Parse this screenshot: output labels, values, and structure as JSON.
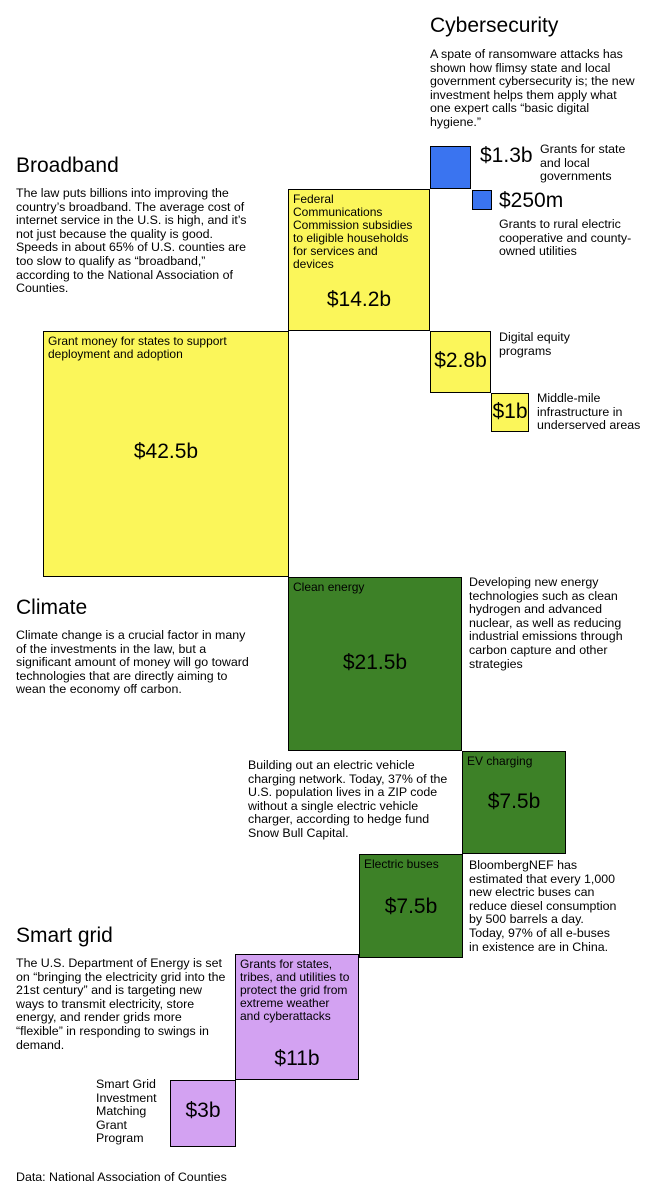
{
  "sections": {
    "cybersecurity": {
      "heading": "Cybersecurity",
      "description": "A spate of ransomware attacks has shown how flimsy state and local government cybersecurity is; the new investment helps them apply what one expert calls “basic digital hygiene.”"
    },
    "broadband": {
      "heading": "Broadband",
      "description": "The law puts billions into improving the country’s broadband. The average cost of internet service in the U.S. is high, and it’s not just because the quality is good. Speeds in about 65% of U.S. counties are too slow to qualify as “broadband,” according to the National Association of Counties."
    },
    "climate": {
      "heading": "Climate",
      "description": "Climate change is a crucial factor in many of the investments in the law, but a significant amount of money will go toward technologies that are directly aiming to wean the economy off carbon."
    },
    "smart_grid": {
      "heading": "Smart grid",
      "description": "The U.S. Department of Energy is set on “bringing the electricity grid into the 21st century” and is targeting new ways to transmit electricity, store energy, and render grids more “flexible” in responding to swings in demand."
    }
  },
  "colors": {
    "broadband": "#fbf65a",
    "cybersecurity": "#3a74f0",
    "climate": "#3d8127",
    "smart_grid": "#d3a2f2",
    "stroke": "#000000"
  },
  "chart_data": {
    "type": "proportional squares",
    "unit": "$ billions",
    "items": [
      {
        "id": "cyber-state",
        "category": "Cybersecurity",
        "label": "Grants for state and local governments",
        "value": 1.3,
        "value_label": "$1.3b"
      },
      {
        "id": "cyber-rural",
        "category": "Cybersecurity",
        "label": "Grants to rural electric cooperative and county-owned utilities",
        "value": 0.25,
        "value_label": "$250m"
      },
      {
        "id": "bb-fcc",
        "category": "Broadband",
        "label": "Federal Communications Commission subsidies to eligible households for services and devices",
        "value": 14.2,
        "value_label": "$14.2b"
      },
      {
        "id": "bb-grant",
        "category": "Broadband",
        "label": "Grant money for states to support deployment and adoption",
        "value": 42.5,
        "value_label": "$42.5b"
      },
      {
        "id": "bb-equity",
        "category": "Broadband",
        "label": "Digital equity programs",
        "value": 2.8,
        "value_label": "$2.8b"
      },
      {
        "id": "bb-middle",
        "category": "Broadband",
        "label": "Middle-mile infrastructure in underserved areas",
        "value": 1,
        "value_label": "$1b"
      },
      {
        "id": "cl-clean",
        "category": "Climate",
        "label": "Clean energy",
        "value": 21.5,
        "value_label": "$21.5b"
      },
      {
        "id": "cl-ev",
        "category": "Climate",
        "label": "EV charging",
        "value": 7.5,
        "value_label": "$7.5b"
      },
      {
        "id": "cl-bus",
        "category": "Climate",
        "label": "Electric buses",
        "value": 7.5,
        "value_label": "$7.5b"
      },
      {
        "id": "sg-grants",
        "category": "Smart grid",
        "label": "Grants for states, tribes, and utilities to protect the grid from extreme weather and cyberattacks",
        "value": 11,
        "value_label": "$11b"
      },
      {
        "id": "sg-match",
        "category": "Smart grid",
        "label": "Smart Grid Investment Matching Grant Program",
        "value": 3,
        "value_label": "$3b"
      }
    ]
  },
  "annotations": {
    "clean_energy": "Developing new energy technologies such as clean hydrogen and advanced nuclear, as well as reducing industrial emissions through carbon capture and other strategies",
    "ev_charging": "Building out an electric vehicle charging network. Today, 37% of the U.S. population lives in a ZIP code without a single electric vehicle charger, according to hedge fund Snow Bull Capital.",
    "electric_buses": "BloombergNEF has estimated that every 1,000 new electric buses can reduce diesel consumption by 500 barrels a day. Today, 97% of all e-buses in existence are in China."
  },
  "source": "Data: National Association of Counties"
}
